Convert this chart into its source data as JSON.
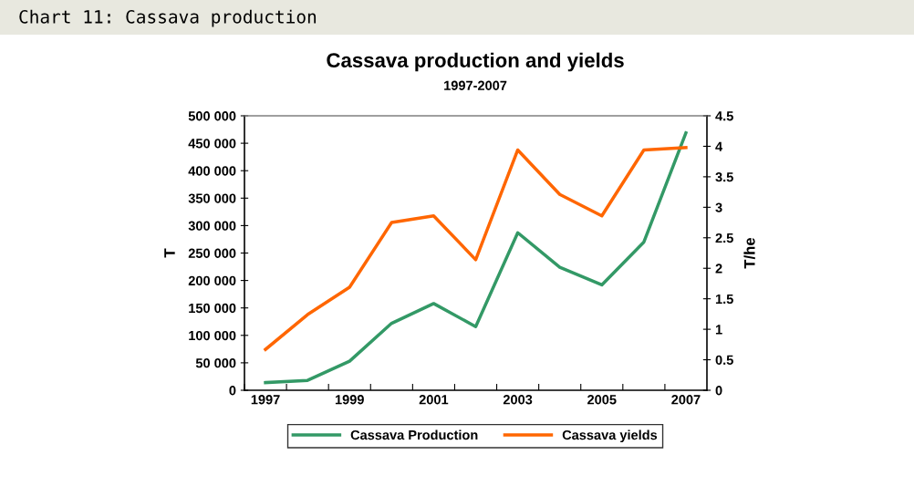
{
  "chart_data": {
    "type": "line",
    "title": "Cassava production and yields",
    "subtitle": "1997-2007",
    "annotations": [
      "Chart 11: Cassava production"
    ],
    "ylabel": "T",
    "y2label": "T/he",
    "categories": [
      "1997",
      null,
      "1999",
      null,
      "2001",
      null,
      "2003",
      null,
      "2005",
      null,
      "2007"
    ],
    "series": [
      {
        "name": "Cassava Production",
        "color": "#339966",
        "values": [
          14000,
          18000,
          53000,
          122000,
          158000,
          116000,
          287000,
          224000,
          192000,
          270000,
          469000
        ]
      },
      {
        "name": "Cassava yields",
        "color": "#ff6600",
        "axis": "y2",
        "values": [
          0.67,
          1.24,
          1.69,
          2.75,
          2.86,
          2.14,
          3.94,
          3.21,
          2.86,
          3.94,
          3.98
        ]
      }
    ],
    "ylim": [
      0,
      500000
    ],
    "yticks": [
      0,
      {
        "value": 50000,
        "label": "50 000"
      },
      {
        "value": 100000,
        "label": "100 000"
      },
      {
        "value": 150000,
        "label": "150 000"
      },
      {
        "value": 200000,
        "label": "200 000"
      },
      {
        "value": 250000,
        "label": "250 000"
      },
      {
        "value": 300000,
        "label": "300 000"
      },
      {
        "value": 350000,
        "label": "350 000"
      },
      {
        "value": 400000,
        "label": "400 000"
      },
      {
        "value": 450000,
        "label": "450 000"
      },
      {
        "value": 500000,
        "label": "500 000"
      }
    ],
    "y2lim": [
      0,
      4.5
    ],
    "y2ticks": [
      0,
      0.5,
      1,
      1.5,
      2,
      2.5,
      3,
      3.5,
      4,
      4.5
    ],
    "grid": false,
    "legend": "bottom",
    "marker": "none",
    "line_style": "solid"
  }
}
